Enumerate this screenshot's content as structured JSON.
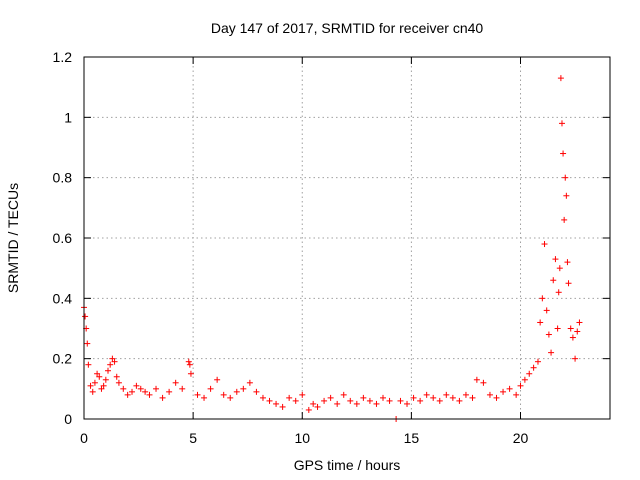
{
  "chart_data": {
    "type": "scatter",
    "title": "Day 147 of 2017, SRMTID for receiver cn40",
    "xlabel": "GPS time / hours",
    "ylabel": "SRMTID / TECUs",
    "xlim": [
      0,
      24.1
    ],
    "ylim": [
      0,
      1.2
    ],
    "xticks": [
      0,
      5,
      10,
      15,
      20
    ],
    "yticks": [
      0,
      0.2,
      0.4,
      0.6,
      0.8,
      1,
      1.2
    ],
    "xtick_labels": [
      "0",
      "5",
      "10",
      "15",
      "20"
    ],
    "ytick_labels": [
      "0",
      "0.2",
      "0.4",
      "0.6",
      "0.8",
      "1",
      "1.2"
    ],
    "grid": true,
    "marker": "+",
    "series": [
      {
        "name": "SRMTID cn40",
        "color": "#ff0000",
        "x": [
          0.0,
          0.05,
          0.1,
          0.15,
          0.2,
          0.3,
          0.4,
          0.5,
          0.6,
          0.7,
          0.8,
          0.9,
          1.0,
          1.1,
          1.2,
          1.3,
          1.4,
          1.5,
          1.6,
          1.8,
          2.0,
          2.2,
          2.4,
          2.6,
          2.8,
          3.0,
          3.3,
          3.6,
          3.9,
          4.2,
          4.5,
          4.8,
          4.85,
          4.9,
          5.2,
          5.5,
          5.8,
          6.1,
          6.4,
          6.7,
          7.0,
          7.3,
          7.6,
          7.9,
          8.2,
          8.5,
          8.8,
          9.1,
          9.4,
          9.7,
          10.0,
          10.3,
          10.5,
          10.7,
          11.0,
          11.3,
          11.6,
          11.9,
          12.2,
          12.5,
          12.8,
          13.1,
          13.4,
          13.7,
          14.0,
          14.3,
          14.5,
          14.8,
          15.1,
          15.4,
          15.7,
          16.0,
          16.3,
          16.6,
          16.9,
          17.2,
          17.5,
          17.8,
          18.0,
          18.3,
          18.6,
          18.9,
          19.2,
          19.5,
          19.8,
          20.0,
          20.2,
          20.4,
          20.6,
          20.8,
          20.9,
          21.0,
          21.1,
          21.2,
          21.3,
          21.4,
          21.5,
          21.6,
          21.7,
          21.75,
          21.8,
          21.85,
          21.9,
          21.95,
          22.0,
          22.05,
          22.1,
          22.15,
          22.2,
          22.3,
          22.4,
          22.5,
          22.6,
          22.7
        ],
        "values": [
          0.37,
          0.34,
          0.3,
          0.25,
          0.18,
          0.11,
          0.09,
          0.12,
          0.15,
          0.14,
          0.1,
          0.11,
          0.13,
          0.16,
          0.18,
          0.2,
          0.19,
          0.14,
          0.12,
          0.1,
          0.08,
          0.09,
          0.11,
          0.1,
          0.09,
          0.08,
          0.1,
          0.07,
          0.09,
          0.12,
          0.1,
          0.19,
          0.18,
          0.15,
          0.08,
          0.07,
          0.1,
          0.13,
          0.08,
          0.07,
          0.09,
          0.1,
          0.12,
          0.09,
          0.07,
          0.06,
          0.05,
          0.04,
          0.07,
          0.06,
          0.08,
          0.03,
          0.05,
          0.04,
          0.06,
          0.07,
          0.05,
          0.08,
          0.06,
          0.05,
          0.07,
          0.06,
          0.05,
          0.07,
          0.06,
          0.0,
          0.06,
          0.05,
          0.07,
          0.06,
          0.08,
          0.07,
          0.06,
          0.08,
          0.07,
          0.06,
          0.08,
          0.07,
          0.13,
          0.12,
          0.08,
          0.07,
          0.09,
          0.1,
          0.08,
          0.11,
          0.13,
          0.15,
          0.17,
          0.19,
          0.32,
          0.4,
          0.58,
          0.36,
          0.28,
          0.22,
          0.46,
          0.53,
          0.3,
          0.42,
          0.5,
          1.13,
          0.98,
          0.88,
          0.66,
          0.8,
          0.74,
          0.52,
          0.45,
          0.3,
          0.27,
          0.2,
          0.29,
          0.32
        ]
      }
    ]
  }
}
